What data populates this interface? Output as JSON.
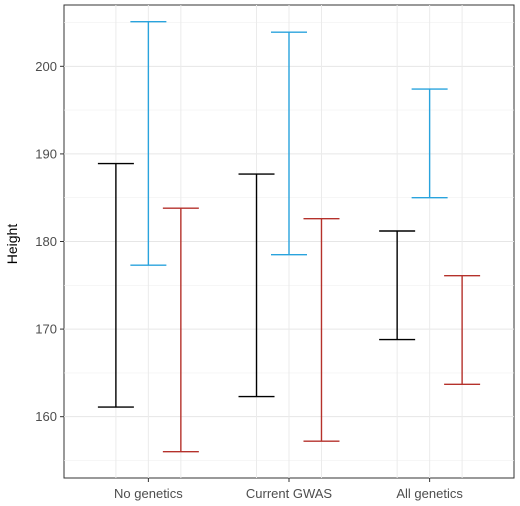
{
  "chart_data": {
    "type": "errorbar",
    "title": "",
    "xlabel": "",
    "ylabel": "Height",
    "ylim": [
      153,
      207
    ],
    "yticks": [
      160,
      170,
      180,
      190,
      200
    ],
    "grid": true,
    "legend": "none",
    "categories": [
      "No genetics",
      "Current GWAS",
      "All genetics"
    ],
    "series": [
      {
        "color": "#000000",
        "intervals": [
          [
            161.1,
            188.9
          ],
          [
            162.3,
            187.7
          ],
          [
            168.8,
            181.2
          ]
        ]
      },
      {
        "color": "#29a3dd",
        "intervals": [
          [
            177.3,
            205.1
          ],
          [
            178.5,
            203.9
          ],
          [
            185.0,
            197.4
          ]
        ]
      },
      {
        "color": "#b5312b",
        "intervals": [
          [
            156.0,
            183.8
          ],
          [
            157.2,
            182.6
          ],
          [
            163.7,
            176.1
          ]
        ]
      }
    ]
  }
}
